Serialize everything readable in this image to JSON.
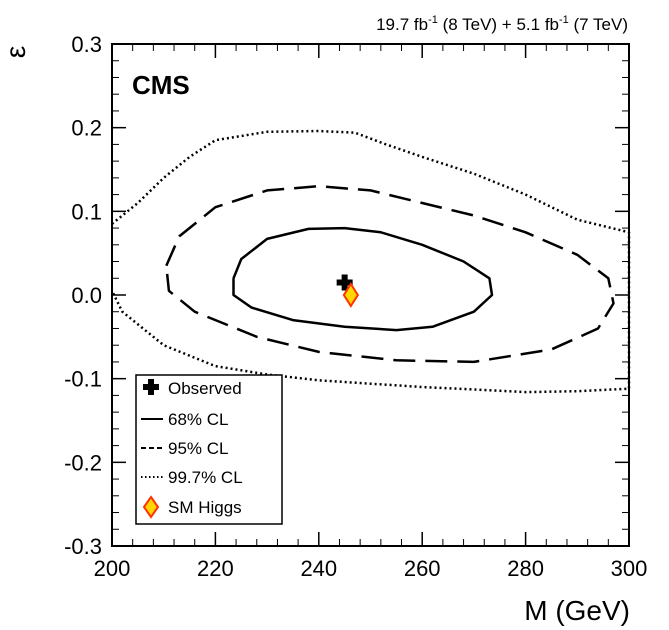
{
  "chart_data": {
    "type": "contour",
    "lumi": {
      "part1_pre": "19.7 fb",
      "part1_sup": "-1",
      "part1_post": " (8 TeV) +  5.1 fb",
      "part2_sup": "-1",
      "part2_post": " (7 TeV)"
    },
    "experiment_label": "CMS",
    "xlabel": "M (GeV)",
    "ylabel": "ε",
    "xlim": [
      200,
      300
    ],
    "ylim": [
      -0.3,
      0.3
    ],
    "x_ticks": [
      "200",
      "220",
      "240",
      "260",
      "280",
      "300"
    ],
    "y_ticks": [
      "-0.3",
      "-0.2",
      "-0.1",
      "0.0",
      "0.1",
      "0.2",
      "0.3"
    ],
    "observed": {
      "x": 245.0,
      "y": 0.015
    },
    "sm_higgs": {
      "x": 246.2,
      "y": 0.0
    },
    "contours": [
      {
        "name": "68% CL",
        "style": "solid",
        "points": [
          [
            223.5,
            0.02
          ],
          [
            225,
            0.043
          ],
          [
            230,
            0.067
          ],
          [
            238,
            0.079
          ],
          [
            245,
            0.08
          ],
          [
            252,
            0.075
          ],
          [
            260,
            0.06
          ],
          [
            268,
            0.04
          ],
          [
            273,
            0.02
          ],
          [
            273.5,
            0.0
          ],
          [
            270,
            -0.02
          ],
          [
            262,
            -0.038
          ],
          [
            255,
            -0.042
          ],
          [
            245,
            -0.038
          ],
          [
            235,
            -0.03
          ],
          [
            227,
            -0.015
          ],
          [
            223.5,
            0.0
          ],
          [
            223.5,
            0.02
          ]
        ]
      },
      {
        "name": "95% CL",
        "style": "dashed",
        "points": [
          [
            210.5,
            0.035
          ],
          [
            213,
            0.07
          ],
          [
            220,
            0.105
          ],
          [
            230,
            0.125
          ],
          [
            240,
            0.13
          ],
          [
            250,
            0.125
          ],
          [
            260,
            0.11
          ],
          [
            270,
            0.095
          ],
          [
            280,
            0.075
          ],
          [
            290,
            0.048
          ],
          [
            296,
            0.02
          ],
          [
            297,
            -0.01
          ],
          [
            294,
            -0.04
          ],
          [
            285,
            -0.065
          ],
          [
            270,
            -0.08
          ],
          [
            255,
            -0.078
          ],
          [
            240,
            -0.068
          ],
          [
            228,
            -0.05
          ],
          [
            216,
            -0.02
          ],
          [
            211,
            0.005
          ],
          [
            210.5,
            0.035
          ]
        ]
      },
      {
        "name": "99.7% CL",
        "style": "dotted",
        "points": [
          [
            200,
            0.085
          ],
          [
            205,
            0.11
          ],
          [
            210,
            0.14
          ],
          [
            215,
            0.165
          ],
          [
            220,
            0.185
          ],
          [
            230,
            0.195
          ],
          [
            240,
            0.196
          ],
          [
            247,
            0.194
          ],
          [
            253,
            0.18
          ],
          [
            260,
            0.165
          ],
          [
            270,
            0.145
          ],
          [
            280,
            0.12
          ],
          [
            290,
            0.09
          ],
          [
            300,
            0.075
          ],
          [
            300,
            -0.112
          ],
          [
            290,
            -0.115
          ],
          [
            280,
            -0.116
          ],
          [
            270,
            -0.113
          ],
          [
            260,
            -0.11
          ],
          [
            250,
            -0.106
          ],
          [
            240,
            -0.102
          ],
          [
            230,
            -0.095
          ],
          [
            220,
            -0.085
          ],
          [
            210,
            -0.06
          ],
          [
            202,
            -0.02
          ],
          [
            200,
            0.005
          ]
        ]
      }
    ],
    "legend": {
      "placement": "bottom-left",
      "entries": [
        "Observed",
        "68% CL",
        "95% CL",
        "99.7% CL",
        "SM Higgs"
      ]
    },
    "colors": {
      "axis": "#000000",
      "contour": "#000000",
      "sm_higgs_fill": "#ffd700",
      "sm_higgs_stroke": "#ff3300",
      "observed": "#000000"
    }
  }
}
